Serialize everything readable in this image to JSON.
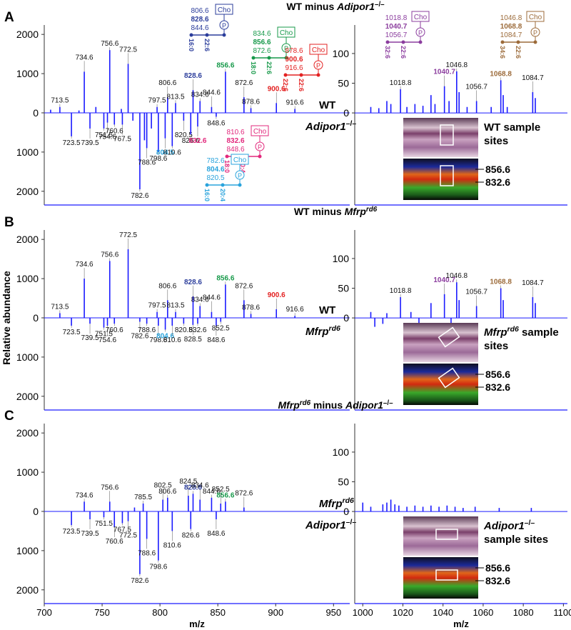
{
  "chart_data": [
    {
      "type": "bar",
      "panel_label": "A",
      "title": [
        {
          "text": "WT minus "
        },
        {
          "text": "Adipor1",
          "italic": true
        },
        {
          "text": "–/–",
          "sup": true
        }
      ],
      "upper_label": [
        {
          "text": "WT"
        }
      ],
      "lower_label": [
        {
          "text": "Adipor1",
          "italic": true
        },
        {
          "text": "–/–",
          "sup": true
        }
      ],
      "color": "#1a1aff",
      "x": [
        705.5,
        713.5,
        723.5,
        730,
        734.6,
        739.5,
        744.6,
        751.5,
        754.6,
        756.6,
        760.6,
        766.6,
        767.5,
        772.5,
        776.6,
        782.6,
        786.6,
        788.6,
        792.6,
        797.5,
        798.6,
        804.5,
        806.6,
        810.6,
        813.5,
        820.5,
        826.6,
        828.6,
        832.6,
        834.6,
        844.6,
        848.6,
        856.6,
        872.6,
        878.6,
        900.6,
        916.6
      ],
      "values": [
        80,
        150,
        -600,
        60,
        1050,
        -400,
        150,
        -400,
        -250,
        1600,
        -300,
        100,
        -300,
        1250,
        -200,
        -1950,
        -700,
        -900,
        -400,
        150,
        -1000,
        -650,
        400,
        -850,
        250,
        -200,
        -550,
        580,
        -350,
        300,
        150,
        -100,
        1050,
        400,
        120,
        250,
        100
      ],
      "labels": [
        null,
        "713.5",
        "723.5",
        null,
        "734.6",
        "739.5",
        null,
        "751.5",
        "754.6",
        "756.6",
        "760.6",
        null,
        "767.5",
        "772.5",
        null,
        "782.6",
        null,
        "788.6",
        null,
        "797.5",
        "798.6",
        "804.5",
        "806.6",
        "810.6",
        "813.5",
        "820.5",
        "826.6",
        "828.6",
        "832.6",
        "834.6",
        "844.6",
        "848.6",
        "856.6",
        "872.6",
        "878.6",
        "900.6",
        "916.6"
      ],
      "label_colors": [
        null,
        null,
        null,
        null,
        null,
        null,
        null,
        null,
        null,
        null,
        null,
        null,
        null,
        null,
        null,
        null,
        null,
        null,
        null,
        null,
        null,
        "#29a3dc",
        null,
        null,
        null,
        null,
        null,
        "#2b3d9b",
        "#e2287c",
        null,
        null,
        null,
        "#17994a",
        null,
        null,
        "#e32222",
        null
      ],
      "xlim": [
        700,
        964
      ],
      "ylim": [
        -2350,
        2240
      ],
      "yticks": [
        2000,
        1000,
        0,
        {
          "value": -1000,
          "label": "1000"
        },
        {
          "value": -2000,
          "label": "2000"
        }
      ],
      "lipids": [
        {
          "color": "#2b3d9b",
          "masses": [
            "806.6",
            "828.6",
            "844.6"
          ],
          "head": "Cho",
          "group": "P",
          "chains": [
            "16:0",
            "22:6"
          ]
        },
        {
          "color": "#17994a",
          "masses": [
            "834.6",
            "856.6",
            "872.6"
          ],
          "head": "Cho",
          "group": "P",
          "chains": [
            "18:0",
            "22:6"
          ]
        },
        {
          "color": "#e32222",
          "masses": [
            "878.6",
            "900.6",
            "916.6"
          ],
          "head": "Cho",
          "group": "P",
          "chains": [
            "22:6",
            "22:6"
          ]
        },
        {
          "color": "#e2287c",
          "masses": [
            "810.6",
            "832.6",
            "848.6"
          ],
          "head": "Cho",
          "group": "P",
          "chains": [
            "18:0",
            "20:4"
          ]
        },
        {
          "color": "#29a3dc",
          "masses": [
            "782.6",
            "804.6",
            "820.5"
          ],
          "head": "Cho",
          "group": "P",
          "chains": [
            "16:0",
            "20:4"
          ]
        }
      ]
    },
    {
      "type": "bar",
      "color": "#1a1aff",
      "x": [
        1004,
        1008,
        1012,
        1014,
        1018.8,
        1022,
        1026,
        1030,
        1034,
        1036,
        1040.7,
        1043,
        1046.8,
        1048,
        1052,
        1056.7,
        1064,
        1068.8,
        1070,
        1072,
        1084.7,
        1086
      ],
      "values": [
        10,
        8,
        20,
        15,
        40,
        10,
        15,
        12,
        30,
        15,
        45,
        20,
        70,
        35,
        10,
        20,
        10,
        55,
        30,
        10,
        35,
        25
      ],
      "labels": [
        null,
        null,
        null,
        null,
        "1018.8",
        null,
        null,
        null,
        null,
        null,
        "1040.7",
        null,
        "1046.8",
        null,
        null,
        "1056.7",
        null,
        "1068.8",
        null,
        null,
        "1084.7",
        null
      ],
      "label_colors": [
        null,
        null,
        null,
        null,
        null,
        null,
        null,
        null,
        null,
        null,
        "#8b3d9e",
        null,
        null,
        null,
        null,
        null,
        null,
        "#9c6b3a",
        null,
        null,
        null,
        null
      ],
      "xlim": [
        996,
        1102
      ],
      "ylim": [
        -155,
        148
      ],
      "yticks": [
        100,
        50,
        0
      ],
      "lipids": [
        {
          "color": "#8b3d9e",
          "masses": [
            "1018.8",
            "1040.7",
            "1056.7"
          ],
          "head": "Cho",
          "group": "P",
          "chains": [
            "32:6",
            "22:6"
          ]
        },
        {
          "color": "#9c6b3a",
          "masses": [
            "1046.8",
            "1068.8",
            "1084.7"
          ],
          "head": "Cho",
          "group": "P",
          "chains": [
            "34:6",
            "22:6"
          ]
        }
      ],
      "image": {
        "caption": [
          [
            {
              "text": "WT sample"
            }
          ],
          [
            {
              "text": "sites"
            }
          ]
        ],
        "markers": [
          "856.6",
          "832.6"
        ]
      }
    },
    {
      "type": "bar",
      "panel_label": "B",
      "ylabel": "Relative abundance",
      "title": [
        {
          "text": "WT minus "
        },
        {
          "text": "Mfrp",
          "italic": true
        },
        {
          "text": "rd6",
          "sup": true,
          "italic": true
        }
      ],
      "upper_label": [
        {
          "text": "WT"
        }
      ],
      "lower_label": [
        {
          "text": "Mfrp",
          "italic": true
        },
        {
          "text": "rd6",
          "sup": true,
          "italic": true
        }
      ],
      "color": "#1a1aff",
      "x": [
        713.5,
        723.5,
        734.6,
        739.5,
        751.5,
        754.6,
        756.6,
        760.6,
        772.5,
        782.6,
        788.6,
        797.5,
        798.6,
        804.6,
        806.6,
        810.6,
        813.5,
        820.5,
        828.5,
        828.6,
        832.6,
        834.6,
        844.6,
        848.6,
        852.5,
        856.6,
        872.6,
        878.6,
        900.6,
        916.6
      ],
      "values": [
        120,
        -200,
        1000,
        -150,
        -250,
        -200,
        1450,
        -150,
        1750,
        -100,
        -150,
        150,
        -200,
        -300,
        450,
        -200,
        150,
        -150,
        -180,
        550,
        -150,
        300,
        150,
        -200,
        -100,
        850,
        450,
        100,
        220,
        50
      ],
      "labels": [
        "713.5",
        "723.5",
        "734.6",
        "739.5",
        "751.5",
        "754.6",
        "756.6",
        "760.6",
        "772.5",
        "782.6",
        "788.6",
        "797.5",
        "798.6",
        "804.6",
        "806.6",
        "810.6",
        "813.5",
        "820.5",
        "828.5",
        "828.6",
        "832.6",
        "834.6",
        "844.6",
        "848.6",
        "852.5",
        "856.6",
        "872.6",
        "878.6",
        "900.6",
        "916.6"
      ],
      "label_colors": [
        null,
        null,
        null,
        null,
        null,
        null,
        null,
        null,
        null,
        null,
        null,
        null,
        null,
        "#29a3dc",
        null,
        null,
        null,
        null,
        null,
        "#2b3d9b",
        null,
        null,
        null,
        null,
        null,
        "#17994a",
        null,
        null,
        "#e32222",
        null
      ],
      "xlim": [
        700,
        964
      ],
      "ylim": [
        -2350,
        2240
      ],
      "yticks": [
        2000,
        1000,
        0,
        {
          "value": -1000,
          "label": "1000"
        },
        {
          "value": -2000,
          "label": "2000"
        }
      ]
    },
    {
      "type": "bar",
      "color": "#1a1aff",
      "x": [
        1004,
        1006,
        1010,
        1012,
        1018.8,
        1024,
        1028,
        1034,
        1040.7,
        1044,
        1046.8,
        1048,
        1056.7,
        1068.8,
        1070,
        1084.7,
        1086
      ],
      "values": [
        10,
        -15,
        -10,
        8,
        35,
        10,
        -10,
        25,
        40,
        -10,
        60,
        30,
        20,
        50,
        30,
        35,
        25
      ],
      "labels": [
        null,
        null,
        null,
        null,
        "1018.8",
        null,
        null,
        null,
        "1040.7",
        null,
        "1046.8",
        null,
        "1056.7",
        "1068.8",
        null,
        "1084.7",
        null
      ],
      "label_colors": [
        null,
        null,
        null,
        null,
        null,
        null,
        null,
        null,
        "#8b3d9e",
        null,
        null,
        null,
        null,
        "#9c6b3a",
        null,
        null,
        null
      ],
      "xlim": [
        996,
        1102
      ],
      "ylim": [
        -155,
        148
      ],
      "yticks": [
        100,
        50,
        0
      ],
      "image": {
        "caption": [
          [
            {
              "text": "Mfrp",
              "italic": true
            },
            {
              "text": "rd6",
              "sup": true,
              "italic": true
            },
            {
              "text": " sample"
            }
          ],
          [
            {
              "text": "sites"
            }
          ]
        ],
        "markers": [
          "856.6",
          "832.6"
        ]
      }
    },
    {
      "type": "bar",
      "panel_label": "C",
      "title": [
        {
          "text": "Mfrp",
          "italic": true
        },
        {
          "text": "rd6",
          "sup": true,
          "italic": true
        },
        {
          "text": " minus "
        },
        {
          "text": "Adipor1",
          "italic": true
        },
        {
          "text": "–/–",
          "sup": true
        }
      ],
      "upper_label": [
        {
          "text": "Mfrp",
          "italic": true
        },
        {
          "text": "rd6",
          "sup": true,
          "italic": true
        }
      ],
      "lower_label": [
        {
          "text": "Adipor1",
          "italic": true
        },
        {
          "text": "–/–",
          "sup": true
        }
      ],
      "color": "#1a1aff",
      "x": [
        723.5,
        734.6,
        739.5,
        751.5,
        756.6,
        760.6,
        767.5,
        772.5,
        778,
        782.6,
        785.5,
        788.6,
        798.6,
        802.5,
        806.6,
        810.6,
        824.5,
        826.6,
        828.6,
        834.6,
        844.6,
        848.6,
        852.5,
        856.6,
        872.6
      ],
      "values": [
        -350,
        250,
        -200,
        -150,
        250,
        -400,
        -300,
        -250,
        100,
        -1600,
        200,
        -700,
        -1250,
        300,
        350,
        -500,
        400,
        -450,
        450,
        300,
        350,
        -200,
        200,
        250,
        100
      ],
      "labels": [
        "723.5",
        "734.6",
        "739.5",
        "751.5",
        "756.6",
        "760.6",
        "767.5",
        "772.5",
        null,
        "782.6",
        "785.5",
        "788.6",
        "798.6",
        "802.5",
        "806.6",
        "810.6",
        "824.5",
        "826.6",
        "828.6",
        "834.6",
        "844.6",
        "848.6",
        "852.5",
        "856.6",
        "872.6"
      ],
      "label_colors": [
        null,
        null,
        null,
        null,
        null,
        null,
        null,
        null,
        null,
        null,
        null,
        null,
        null,
        null,
        null,
        null,
        null,
        null,
        "#2b3d9b",
        null,
        null,
        null,
        null,
        "#17994a",
        null
      ],
      "xlim": [
        700,
        964
      ],
      "ylim": [
        -2350,
        2240
      ],
      "yticks": [
        2000,
        1000,
        0,
        {
          "value": -1000,
          "label": "1000"
        },
        {
          "value": -2000,
          "label": "2000"
        }
      ],
      "xticks": [
        700,
        750,
        800,
        850,
        900,
        950
      ],
      "xlabel": "m/z"
    },
    {
      "type": "bar",
      "color": "#1a1aff",
      "x": [
        1000,
        1004,
        1010,
        1012,
        1014,
        1016,
        1018,
        1022,
        1026,
        1030,
        1034,
        1038,
        1042,
        1046,
        1050,
        1056,
        1068,
        1084
      ],
      "values": [
        15,
        8,
        12,
        15,
        20,
        12,
        10,
        8,
        10,
        8,
        10,
        8,
        10,
        8,
        6,
        8,
        6,
        6
      ],
      "xlim": [
        996,
        1102
      ],
      "ylim": [
        -155,
        148
      ],
      "yticks": [
        100,
        50,
        0
      ],
      "xticks": [
        1000,
        1020,
        1040,
        1060,
        1080,
        1100
      ],
      "xlabel": "m/z",
      "image": {
        "caption": [
          [
            {
              "text": "Adipor1",
              "italic": true
            },
            {
              "text": "–/–",
              "sup": true
            }
          ],
          [
            {
              "text": "sample sites"
            }
          ]
        ],
        "markers": [
          "856.6",
          "832.6"
        ]
      }
    }
  ]
}
